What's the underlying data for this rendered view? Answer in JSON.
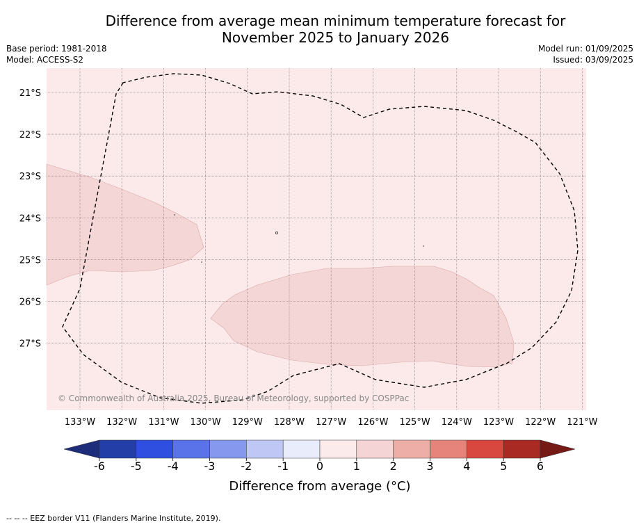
{
  "title": {
    "line1": "Difference from average mean minimum temperature forecast for",
    "line2": "November 2025 to January 2026"
  },
  "meta": {
    "base_period": "Base period: 1981-2018",
    "model": "Model: ACCESS-S2",
    "model_run": "Model run: 01/09/2025",
    "issued": "Issued: 03/09/2025"
  },
  "map": {
    "latitude_labels": [
      "21°S",
      "22°S",
      "23°S",
      "24°S",
      "25°S",
      "26°S",
      "27°S"
    ],
    "longitude_labels": [
      "133°W",
      "132°W",
      "131°W",
      "130°W",
      "129°W",
      "128°W",
      "127°W",
      "126°W",
      "125°W",
      "124°W",
      "123°W",
      "122°W",
      "121°W"
    ],
    "copyright": "© Commonwealth of Australia 2025, Bureau of Meteorology, supported by COSPPac",
    "background_category_color": "#fbeae9",
    "anomaly_region_color": "#f5d6d6",
    "eez_border_style": "dashed black"
  },
  "colorbar": {
    "ticks": [
      "-6",
      "-5",
      "-4",
      "-3",
      "-2",
      "-1",
      "0",
      "1",
      "2",
      "3",
      "4",
      "5",
      "6"
    ],
    "label": "Difference from average (°C)",
    "colors": [
      "#233ea6",
      "#2f4fe0",
      "#5a73e8",
      "#8697ee",
      "#bfc7f5",
      "#e9ecfb",
      "#fbebea",
      "#f4d4d4",
      "#edaea8",
      "#e6847c",
      "#d9483f",
      "#a82a22"
    ],
    "low_extend_color": "#1d2d7a",
    "high_extend_color": "#761a16"
  },
  "footer": {
    "eez_legend": "-- -- -- EEZ border V11 (Flanders Marine Institute, 2019)."
  }
}
